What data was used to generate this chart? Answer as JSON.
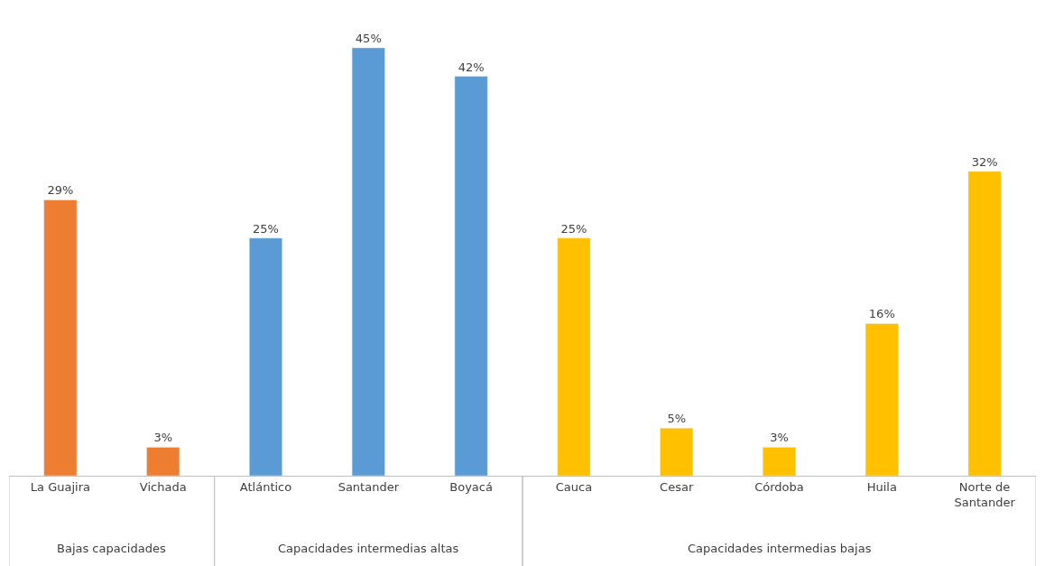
{
  "chart_data": {
    "type": "bar",
    "categories": [
      "La Guajira",
      "Vichada",
      "Atlántico",
      "Santander",
      "Boyacá",
      "Cauca",
      "Cesar",
      "Córdoba",
      "Huila",
      "Norte de Santander"
    ],
    "series": [
      {
        "color": "#ed7d31",
        "values": [
          29,
          3,
          null,
          null,
          null,
          null,
          null,
          null,
          null,
          null
        ],
        "value_labels": [
          "29%",
          "3%",
          null,
          null,
          null,
          null,
          null,
          null,
          null,
          null
        ]
      },
      {
        "color": "#5b9bd5",
        "values": [
          null,
          null,
          25,
          45,
          42,
          null,
          null,
          null,
          null,
          null
        ],
        "value_labels": [
          null,
          null,
          "25%",
          "45%",
          "42%",
          null,
          null,
          null,
          null,
          null
        ]
      },
      {
        "color": "#ffc000",
        "values": [
          null,
          null,
          null,
          null,
          null,
          25,
          5,
          3,
          16,
          32
        ],
        "value_labels": [
          null,
          null,
          null,
          null,
          null,
          "25%",
          "5%",
          "3%",
          "16%",
          "32%"
        ]
      }
    ],
    "annotations": [
      "Bajas capacidades",
      "Capacidades intermedias altas",
      "Capacidades intermedias bajas"
    ],
    "legend": false
  }
}
